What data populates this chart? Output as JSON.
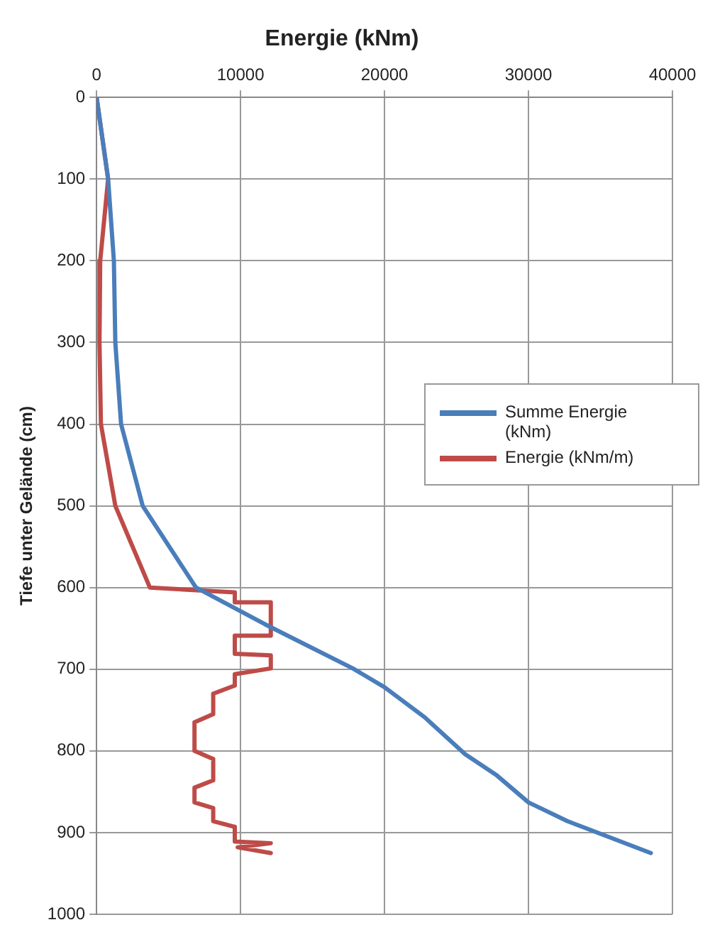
{
  "chart_data": {
    "type": "line",
    "title": "Energie (kNm)",
    "ylabel": "Tiefe unter Gelände (cm)",
    "xlim": [
      0,
      40000
    ],
    "xticks": [
      0,
      10000,
      20000,
      30000,
      40000
    ],
    "ylim": [
      1000,
      0
    ],
    "yticks": [
      0,
      100,
      200,
      300,
      400,
      500,
      600,
      700,
      800,
      900,
      1000
    ],
    "grid": true,
    "legend": "right",
    "marker": "none",
    "line_style": "solid",
    "series": [
      {
        "name": "Summe Energie (kNm)",
        "color": "#4a7ebb",
        "x": [
          0,
          800,
          1200,
          1300,
          1700,
          3200,
          6900,
          11700,
          17800,
          20000,
          22800,
          25600,
          27800,
          30000,
          32700,
          38500
        ],
        "values": [
          0,
          100,
          200,
          300,
          400,
          500,
          600,
          645,
          699,
          722,
          759,
          804,
          830,
          863,
          886,
          925
        ]
      },
      {
        "name": "Energie (kNm/m)",
        "color": "#be4b48",
        "x": [
          0,
          800,
          250,
          200,
          300,
          1300,
          3700,
          9600,
          9600,
          12100,
          12100,
          9600,
          9600,
          12100,
          12100,
          9600,
          9600,
          8100,
          8100,
          6800,
          6800,
          8100,
          8100,
          6800,
          6800,
          8100,
          8100,
          9600,
          9600,
          12100,
          9800,
          12100
        ],
        "values": [
          0,
          100,
          200,
          300,
          400,
          500,
          600,
          606,
          618,
          618,
          659,
          659,
          681,
          683,
          699,
          706,
          720,
          730,
          755,
          765,
          800,
          810,
          836,
          845,
          863,
          870,
          886,
          893,
          911,
          913,
          918,
          925
        ]
      }
    ]
  }
}
